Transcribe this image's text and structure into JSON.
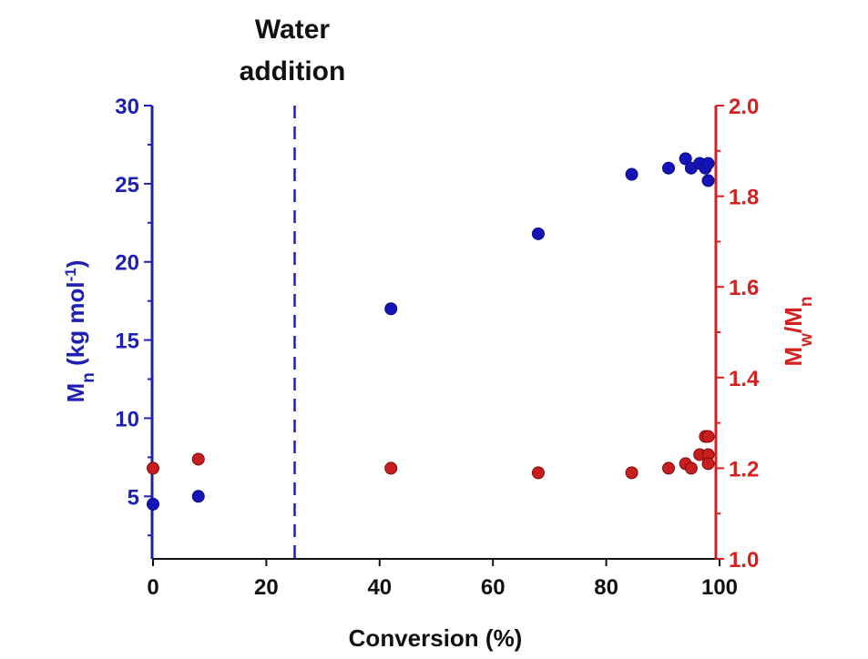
{
  "chart_data": {
    "type": "scatter",
    "xlabel": "Conversion (%)",
    "ylabel_left": {
      "base": "M",
      "sub": "n",
      "rest": " (kg mol",
      "sup": "-1",
      "close": ")"
    },
    "ylabel_right": {
      "base": "M",
      "sub1": "w",
      "mid": "/M",
      "sub2": "n"
    },
    "xlim": [
      0,
      100
    ],
    "ylim_left": [
      1,
      30
    ],
    "ylim_right": [
      1.0,
      2.0
    ],
    "x_ticks": [
      "0",
      "20",
      "40",
      "60",
      "80",
      "100"
    ],
    "y_left_ticks": [
      "5",
      "10",
      "15",
      "20",
      "25",
      "30"
    ],
    "y_right_ticks": [
      "1.0",
      "1.2",
      "1.4",
      "1.6",
      "1.8",
      "2.0"
    ],
    "annotation": {
      "line1": "Water",
      "line2": "addition",
      "x": 25
    },
    "colors": {
      "left_axis": "#1f1fb4",
      "right_axis": "#d42020",
      "blue_points": "#1414b8",
      "red_points": "#c81e1e"
    },
    "series": [
      {
        "axis": "left",
        "color": "#1414b8",
        "points": [
          [
            0,
            4.5
          ],
          [
            8,
            5.0
          ],
          [
            42,
            17.0
          ],
          [
            68,
            21.8
          ],
          [
            84.5,
            25.6
          ],
          [
            91,
            26.0
          ],
          [
            94,
            26.6
          ],
          [
            95,
            26.0
          ],
          [
            96.5,
            26.3
          ],
          [
            97.5,
            26.0
          ],
          [
            98,
            26.3
          ],
          [
            98,
            25.2
          ]
        ]
      },
      {
        "axis": "right",
        "color": "#c81e1e",
        "points": [
          [
            0,
            1.2
          ],
          [
            8,
            1.22
          ],
          [
            42,
            1.2
          ],
          [
            68,
            1.19
          ],
          [
            84.5,
            1.19
          ],
          [
            91,
            1.2
          ],
          [
            94,
            1.21
          ],
          [
            95,
            1.2
          ],
          [
            96.5,
            1.23
          ],
          [
            97.5,
            1.27
          ],
          [
            98,
            1.27
          ],
          [
            98,
            1.23
          ],
          [
            98,
            1.21
          ]
        ]
      }
    ]
  }
}
